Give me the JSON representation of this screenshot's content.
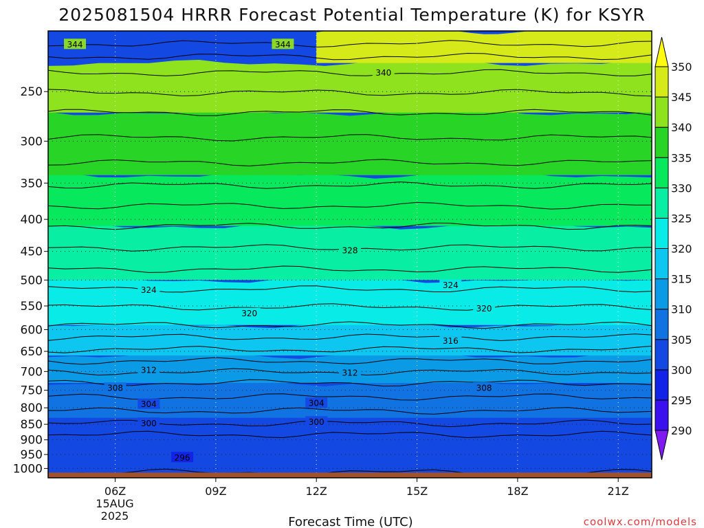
{
  "chart_data": {
    "type": "contour",
    "title": "2025081504 HRRR Forecast Potential Temperature (K) for KSYR",
    "xlabel": "Forecast Time (UTC)",
    "ylabel": "",
    "x_ticks": [
      {
        "label": "06Z",
        "hour": 6
      },
      {
        "label": "09Z",
        "hour": 9
      },
      {
        "label": "12Z",
        "hour": 12
      },
      {
        "label": "15Z",
        "hour": 15
      },
      {
        "label": "18Z",
        "hour": 18
      },
      {
        "label": "21Z",
        "hour": 21
      }
    ],
    "x_date_label": [
      "15AUG",
      "2025"
    ],
    "xlim_hours": [
      4,
      22
    ],
    "y_ticks": [
      250,
      300,
      350,
      400,
      450,
      500,
      550,
      600,
      650,
      700,
      750,
      800,
      850,
      900,
      950,
      1000
    ],
    "ylim_hpa": [
      1035,
      200
    ],
    "y_scale": "log",
    "grid": true,
    "colorbar": {
      "levels": [
        290,
        295,
        300,
        305,
        310,
        315,
        320,
        325,
        330,
        335,
        340,
        345,
        350
      ],
      "colors": [
        "#7f1bf0",
        "#3b10ef",
        "#1222e6",
        "#1448e3",
        "#1173e2",
        "#0b9be6",
        "#0dc7f0",
        "#08ebe6",
        "#08eea2",
        "#08e85c",
        "#28d526",
        "#8ee21e",
        "#d5ea18",
        "#fffa12"
      ],
      "extend": "both"
    },
    "filled_bands": [
      {
        "from": 290,
        "to": 295,
        "p_top": 985,
        "p_bottom": 1015,
        "hour_start": 5,
        "hour_end": 13.5
      },
      {
        "from": 295,
        "to": 300,
        "p_top": 920,
        "p_bottom": 1015,
        "hour_start": 4,
        "hour_end": 17.2
      },
      {
        "from": 300,
        "to": 305,
        "p_top": 830,
        "p_bottom": 1015,
        "hour_start": 4,
        "hour_end": 22
      },
      {
        "from": 305,
        "to": 310,
        "p_top": 730,
        "p_bottom": 830,
        "hour_start": 4,
        "hour_end": 22
      },
      {
        "from": 310,
        "to": 315,
        "p_top": 660,
        "p_bottom": 730,
        "hour_start": 4,
        "hour_end": 22
      },
      {
        "from": 315,
        "to": 320,
        "p_top": 590,
        "p_bottom": 660,
        "hour_start": 4,
        "hour_end": 22
      },
      {
        "from": 320,
        "to": 325,
        "p_top": 500,
        "p_bottom": 590,
        "hour_start": 4,
        "hour_end": 22
      },
      {
        "from": 325,
        "to": 330,
        "p_top": 410,
        "p_bottom": 500,
        "hour_start": 4,
        "hour_end": 22
      },
      {
        "from": 330,
        "to": 335,
        "p_top": 340,
        "p_bottom": 410,
        "hour_start": 4,
        "hour_end": 22
      },
      {
        "from": 335,
        "to": 340,
        "p_top": 270,
        "p_bottom": 340,
        "hour_start": 4,
        "hour_end": 22
      },
      {
        "from": 340,
        "to": 345,
        "p_top": 225,
        "p_bottom": 270,
        "hour_start": 4,
        "hour_end": 22
      },
      {
        "from": 345,
        "to": 350,
        "p_top": 200,
        "p_bottom": 225,
        "hour_start": 12,
        "hour_end": 22
      }
    ],
    "contour_labels": [
      {
        "value": 344,
        "hour": 4.8,
        "p": 210
      },
      {
        "value": 344,
        "hour": 11.0,
        "p": 210
      },
      {
        "value": 340,
        "hour": 14.0,
        "p": 233
      },
      {
        "value": 328,
        "hour": 13.0,
        "p": 448
      },
      {
        "value": 324,
        "hour": 7.0,
        "p": 518
      },
      {
        "value": 324,
        "hour": 16.0,
        "p": 509
      },
      {
        "value": 320,
        "hour": 10.0,
        "p": 565
      },
      {
        "value": 320,
        "hour": 17.0,
        "p": 555
      },
      {
        "value": 316,
        "hour": 16.0,
        "p": 625
      },
      {
        "value": 312,
        "hour": 7.0,
        "p": 696
      },
      {
        "value": 312,
        "hour": 13.0,
        "p": 703
      },
      {
        "value": 308,
        "hour": 6.0,
        "p": 743
      },
      {
        "value": 308,
        "hour": 17.0,
        "p": 743
      },
      {
        "value": 304,
        "hour": 7.0,
        "p": 789
      },
      {
        "value": 304,
        "hour": 12.0,
        "p": 786
      },
      {
        "value": 300,
        "hour": 7.0,
        "p": 846
      },
      {
        "value": 300,
        "hour": 12.0,
        "p": 842
      },
      {
        "value": 296,
        "hour": 8.0,
        "p": 960
      }
    ],
    "surface_color": "#a0522d",
    "surface_p": 1015
  },
  "credit": "coolwx.com/models"
}
